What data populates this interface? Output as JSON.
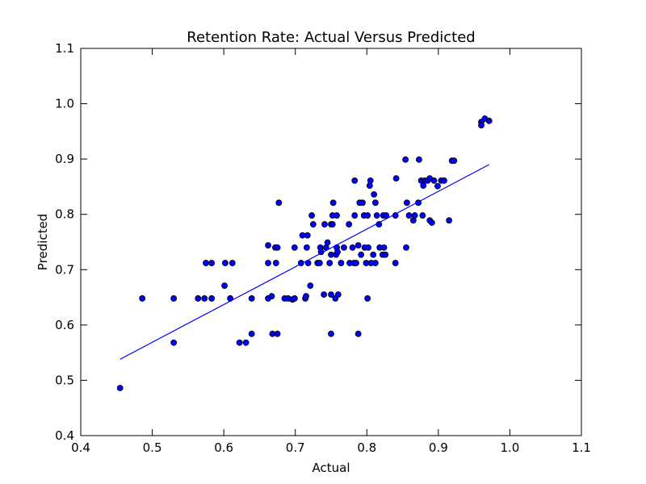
{
  "chart_data": {
    "type": "scatter",
    "title": "Retention Rate: Actual Versus Predicted",
    "x_label": "Actual",
    "y_label": "Predicted",
    "color": "#0000ff",
    "edge_color": "#000000",
    "x": [
      0.455,
      0.486,
      0.53,
      0.53,
      0.564,
      0.573,
      0.575,
      0.583,
      0.583,
      0.601,
      0.602,
      0.609,
      0.612,
      0.622,
      0.631,
      0.639,
      0.639,
      0.662,
      0.662,
      0.662,
      0.667,
      0.668,
      0.672,
      0.673,
      0.675,
      0.675,
      0.677,
      0.685,
      0.69,
      0.696,
      0.699,
      0.699,
      0.708,
      0.71,
      0.714,
      0.715,
      0.716,
      0.717,
      0.718,
      0.721,
      0.723,
      0.725,
      0.731,
      0.734,
      0.735,
      0.736,
      0.74,
      0.741,
      0.743,
      0.745,
      0.748,
      0.75,
      0.75,
      0.75,
      0.75,
      0.752,
      0.752,
      0.753,
      0.756,
      0.757,
      0.758,
      0.758,
      0.759,
      0.76,
      0.764,
      0.768,
      0.775,
      0.776,
      0.78,
      0.782,
      0.783,
      0.783,
      0.785,
      0.788,
      0.788,
      0.79,
      0.792,
      0.794,
      0.796,
      0.797,
      0.799,
      0.801,
      0.801,
      0.802,
      0.804,
      0.805,
      0.806,
      0.809,
      0.81,
      0.812,
      0.812,
      0.814,
      0.817,
      0.818,
      0.822,
      0.823,
      0.824,
      0.826,
      0.827,
      0.84,
      0.84,
      0.841,
      0.854,
      0.855,
      0.856,
      0.859,
      0.865,
      0.867,
      0.872,
      0.873,
      0.876,
      0.878,
      0.879,
      0.881,
      0.885,
      0.888,
      0.888,
      0.891,
      0.894,
      0.899,
      0.904,
      0.908,
      0.915,
      0.919,
      0.922,
      0.96,
      0.96,
      0.965,
      0.971
    ],
    "values": [
      0.486,
      0.648,
      0.648,
      0.568,
      0.648,
      0.648,
      0.712,
      0.712,
      0.648,
      0.671,
      0.712,
      0.648,
      0.712,
      0.568,
      0.568,
      0.584,
      0.648,
      0.744,
      0.712,
      0.648,
      0.652,
      0.584,
      0.74,
      0.712,
      0.74,
      0.584,
      0.821,
      0.648,
      0.648,
      0.646,
      0.74,
      0.648,
      0.712,
      0.762,
      0.648,
      0.652,
      0.74,
      0.762,
      0.712,
      0.671,
      0.798,
      0.782,
      0.712,
      0.712,
      0.74,
      0.732,
      0.655,
      0.782,
      0.74,
      0.749,
      0.712,
      0.655,
      0.584,
      0.727,
      0.782,
      0.798,
      0.782,
      0.821,
      0.648,
      0.727,
      0.798,
      0.74,
      0.732,
      0.655,
      0.712,
      0.74,
      0.782,
      0.712,
      0.74,
      0.712,
      0.861,
      0.798,
      0.712,
      0.744,
      0.584,
      0.821,
      0.727,
      0.821,
      0.798,
      0.74,
      0.712,
      0.648,
      0.798,
      0.74,
      0.852,
      0.861,
      0.712,
      0.727,
      0.836,
      0.821,
      0.712,
      0.798,
      0.782,
      0.74,
      0.727,
      0.798,
      0.74,
      0.727,
      0.798,
      0.712,
      0.798,
      0.865,
      0.899,
      0.74,
      0.821,
      0.798,
      0.789,
      0.798,
      0.821,
      0.899,
      0.861,
      0.798,
      0.852,
      0.861,
      0.861,
      0.789,
      0.865,
      0.785,
      0.861,
      0.851,
      0.861,
      0.861,
      0.789,
      0.897,
      0.897,
      0.967,
      0.961,
      0.973,
      0.969
    ],
    "fit_line": {
      "x": [
        0.455,
        0.971
      ],
      "values": [
        0.538,
        0.89
      ],
      "color": "#0000ff"
    },
    "xlim": [
      0.4,
      1.1
    ],
    "xticks": [
      0.4,
      0.5,
      0.6,
      0.7,
      0.8,
      0.9,
      {
        "value": 1,
        "label": "1.0"
      },
      1.1
    ],
    "ylim": [
      0.4,
      1.1
    ],
    "yticks": [
      0.4,
      0.5,
      0.6,
      0.7,
      0.8,
      0.9,
      {
        "value": 1,
        "label": "1.0"
      },
      1.1
    ]
  }
}
